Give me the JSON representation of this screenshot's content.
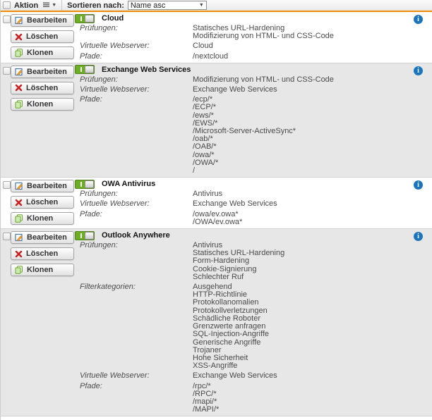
{
  "toolbar": {
    "action_label": "Aktion",
    "sort_label": "Sortieren nach:",
    "sort_value": "Name asc"
  },
  "buttons": {
    "edit_label": "Bearbeiten",
    "delete_label": "Löschen",
    "clone_label": "Klonen"
  },
  "icons": {
    "action_menu": "list-menu-icon",
    "action_caret": "caret-down-icon",
    "edit": "pencil-form-icon",
    "delete": "red-x-icon",
    "clone": "copy-pages-icon",
    "toggle_on": "status-toggle-on-icon",
    "info": "info-circle-icon",
    "select_caret": "chevron-down-icon"
  },
  "glyphs": {
    "info": "i",
    "caret": "▼"
  },
  "colors": {
    "accent_orange": "#ee8b00",
    "toggle_green": "#6cae24",
    "info_blue": "#1b75bc",
    "row_alt_gray": "#e7e7e7"
  },
  "items": [
    {
      "name": "Cloud",
      "enabled": true,
      "fields": [
        {
          "label": "Prüfungen:",
          "values": [
            "Statisches URL-Hardening",
            "Modifizierung von HTML- und CSS-Code"
          ]
        },
        {
          "label": "Virtuelle Webserver:",
          "values": [
            "Cloud"
          ]
        },
        {
          "label": "Pfade:",
          "values": [
            "/nextcloud"
          ]
        }
      ]
    },
    {
      "name": "Exchange Web Services",
      "enabled": true,
      "fields": [
        {
          "label": "Prüfungen:",
          "values": [
            "Modifizierung von HTML- und CSS-Code"
          ]
        },
        {
          "label": "Virtuelle Webserver:",
          "values": [
            "Exchange Web Services"
          ]
        },
        {
          "label": "Pfade:",
          "values": [
            "/ecp/*",
            "/ECP/*",
            "/ews/*",
            "/EWS/*",
            "/Microsoft-Server-ActiveSync*",
            "/oab/*",
            "/OAB/*",
            "/owa/*",
            "/OWA/*",
            "/"
          ]
        }
      ]
    },
    {
      "name": "OWA Antivirus",
      "enabled": true,
      "fields": [
        {
          "label": "Prüfungen:",
          "values": [
            "Antivirus"
          ]
        },
        {
          "label": "Virtuelle Webserver:",
          "values": [
            "Exchange Web Services"
          ]
        },
        {
          "label": "Pfade:",
          "values": [
            "/owa/ev.owa*",
            "/OWA/ev.owa*"
          ]
        }
      ]
    },
    {
      "name": "Outlook Anywhere",
      "enabled": true,
      "fields": [
        {
          "label": "Prüfungen:",
          "values": [
            "Antivirus",
            "Statisches URL-Hardening",
            "Form-Hardening",
            "Cookie-Signierung",
            "Schlechter Ruf"
          ]
        },
        {
          "label": "Filterkategorien:",
          "values": [
            "Ausgehend",
            "HTTP-Richtlinie",
            "Protokollanomalien",
            "Protokollverletzungen",
            "Schädliche Roboter",
            "Grenzwerte anfragen",
            "SQL-Injection-Angriffe",
            "Generische Angriffe",
            "Trojaner",
            "Hohe Sicherheit",
            "XSS-Angriffe"
          ]
        },
        {
          "label": "Virtuelle Webserver:",
          "values": [
            "Exchange Web Services"
          ]
        },
        {
          "label": "Pfade:",
          "values": [
            "/rpc/*",
            "/RPC/*",
            "/mapi/*",
            "/MAPI/*"
          ]
        }
      ]
    }
  ]
}
